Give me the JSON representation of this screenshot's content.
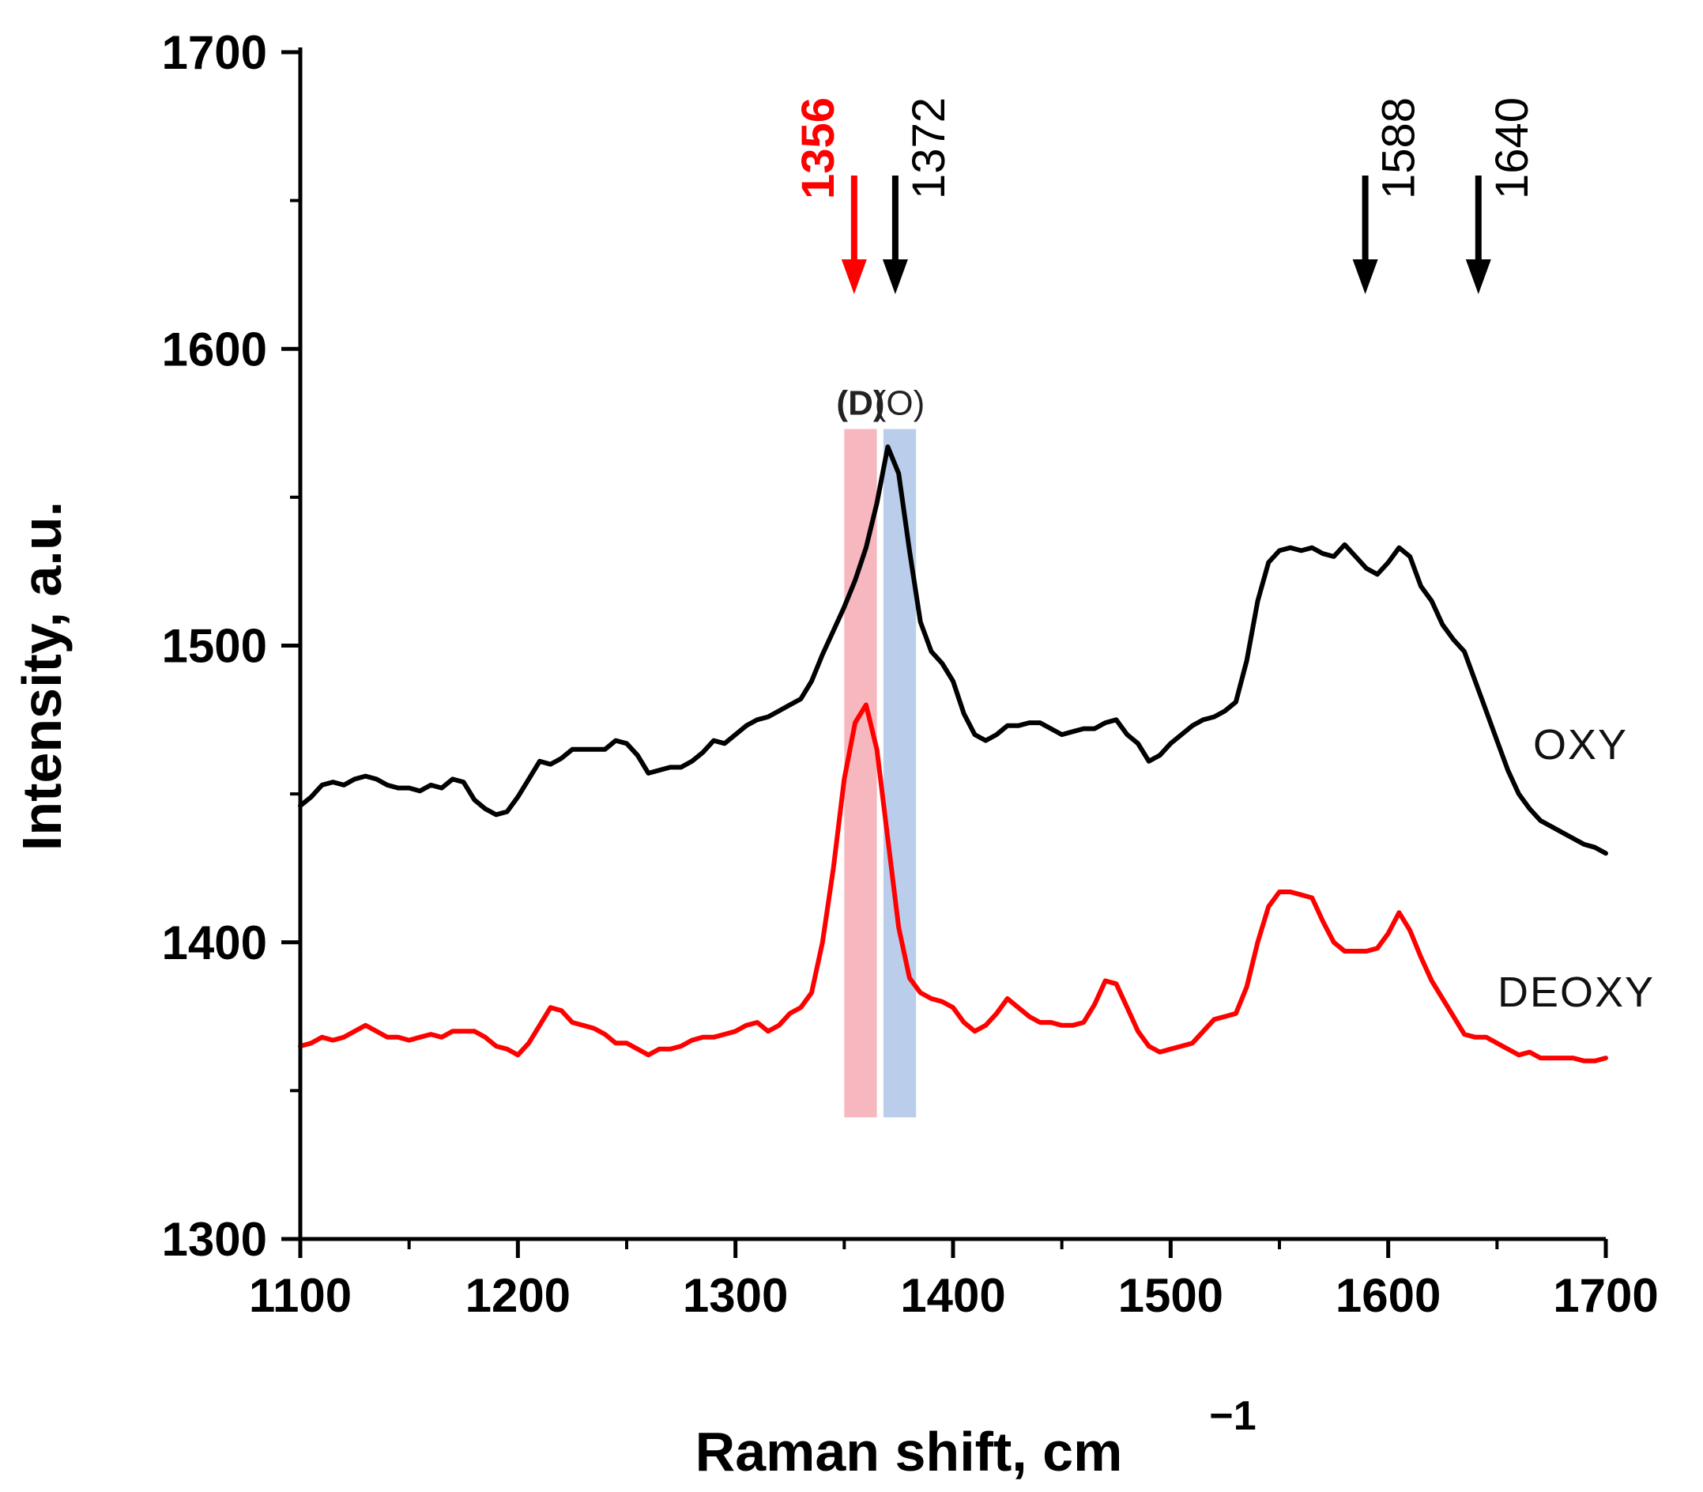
{
  "chart_data": {
    "type": "line",
    "title": "",
    "xlabel": "Raman shift, cm",
    "xlabel_superscript": "−1",
    "ylabel": "Intensity, a.u.",
    "xlim": [
      1100,
      1700
    ],
    "ylim": [
      1300,
      1700
    ],
    "x_ticks": [
      1100,
      1200,
      1300,
      1400,
      1500,
      1600,
      1700
    ],
    "x_tick_labels": [
      "1100",
      "1200",
      "1300",
      "1400",
      "1500",
      "1600",
      "1700"
    ],
    "y_ticks": [
      1300,
      1400,
      1500,
      1600,
      1700
    ],
    "y_tick_labels": [
      "1300",
      "1400",
      "1500",
      "1600",
      "1700"
    ],
    "grid": false,
    "series": [
      {
        "name": "OXY",
        "color": "#000000",
        "x": [
          1100,
          1105,
          1110,
          1115,
          1120,
          1125,
          1130,
          1135,
          1140,
          1145,
          1150,
          1155,
          1160,
          1165,
          1170,
          1175,
          1180,
          1185,
          1190,
          1195,
          1200,
          1205,
          1210,
          1215,
          1220,
          1225,
          1230,
          1235,
          1240,
          1245,
          1250,
          1255,
          1260,
          1265,
          1270,
          1275,
          1280,
          1285,
          1290,
          1295,
          1300,
          1305,
          1310,
          1315,
          1320,
          1325,
          1330,
          1335,
          1340,
          1345,
          1350,
          1355,
          1360,
          1365,
          1370,
          1375,
          1380,
          1385,
          1390,
          1395,
          1400,
          1405,
          1410,
          1415,
          1420,
          1425,
          1430,
          1435,
          1440,
          1445,
          1450,
          1455,
          1460,
          1465,
          1470,
          1475,
          1480,
          1485,
          1490,
          1495,
          1500,
          1505,
          1510,
          1515,
          1520,
          1525,
          1530,
          1535,
          1540,
          1545,
          1550,
          1555,
          1560,
          1565,
          1570,
          1575,
          1580,
          1585,
          1590,
          1595,
          1600,
          1605,
          1610,
          1615,
          1620,
          1625,
          1630,
          1635,
          1640,
          1645,
          1650,
          1655,
          1660,
          1665,
          1670,
          1675,
          1680,
          1685,
          1690,
          1695,
          1700
        ],
        "y": [
          1446,
          1449,
          1453,
          1454,
          1453,
          1455,
          1456,
          1455,
          1453,
          1452,
          1452,
          1451,
          1453,
          1452,
          1455,
          1454,
          1448,
          1445,
          1443,
          1444,
          1449,
          1455,
          1461,
          1460,
          1462,
          1465,
          1465,
          1465,
          1465,
          1468,
          1467,
          1463,
          1457,
          1458,
          1459,
          1459,
          1461,
          1464,
          1468,
          1467,
          1470,
          1473,
          1475,
          1476,
          1478,
          1480,
          1482,
          1488,
          1497,
          1505,
          1513,
          1522,
          1533,
          1548,
          1567,
          1558,
          1532,
          1508,
          1498,
          1494,
          1488,
          1477,
          1470,
          1468,
          1470,
          1473,
          1473,
          1474,
          1474,
          1472,
          1470,
          1471,
          1472,
          1472,
          1474,
          1475,
          1470,
          1467,
          1461,
          1463,
          1467,
          1470,
          1473,
          1475,
          1476,
          1478,
          1481,
          1495,
          1515,
          1528,
          1532,
          1533,
          1532,
          1533,
          1531,
          1530,
          1534,
          1530,
          1526,
          1524,
          1528,
          1533,
          1530,
          1520,
          1515,
          1507,
          1502,
          1498,
          1488,
          1478,
          1468,
          1458,
          1450,
          1445,
          1441,
          1439,
          1437,
          1435,
          1433,
          1432,
          1430
        ]
      },
      {
        "name": "DEOXY",
        "color": "#ff0000",
        "x": [
          1100,
          1105,
          1110,
          1115,
          1120,
          1125,
          1130,
          1135,
          1140,
          1145,
          1150,
          1155,
          1160,
          1165,
          1170,
          1175,
          1180,
          1185,
          1190,
          1195,
          1200,
          1205,
          1210,
          1215,
          1220,
          1225,
          1230,
          1235,
          1240,
          1245,
          1250,
          1255,
          1260,
          1265,
          1270,
          1275,
          1280,
          1285,
          1290,
          1295,
          1300,
          1305,
          1310,
          1315,
          1320,
          1325,
          1330,
          1335,
          1340,
          1345,
          1350,
          1355,
          1360,
          1365,
          1370,
          1375,
          1380,
          1385,
          1390,
          1395,
          1400,
          1405,
          1410,
          1415,
          1420,
          1425,
          1430,
          1435,
          1440,
          1445,
          1450,
          1455,
          1460,
          1465,
          1470,
          1475,
          1480,
          1485,
          1490,
          1495,
          1500,
          1505,
          1510,
          1515,
          1520,
          1525,
          1530,
          1535,
          1540,
          1545,
          1550,
          1555,
          1560,
          1565,
          1570,
          1575,
          1580,
          1585,
          1590,
          1595,
          1600,
          1605,
          1610,
          1615,
          1620,
          1625,
          1630,
          1635,
          1640,
          1645,
          1650,
          1655,
          1660,
          1665,
          1670,
          1675,
          1680,
          1685,
          1690,
          1695,
          1700
        ],
        "y": [
          1365,
          1366,
          1368,
          1367,
          1368,
          1370,
          1372,
          1370,
          1368,
          1368,
          1367,
          1368,
          1369,
          1368,
          1370,
          1370,
          1370,
          1368,
          1365,
          1364,
          1362,
          1366,
          1372,
          1378,
          1377,
          1373,
          1372,
          1371,
          1369,
          1366,
          1366,
          1364,
          1362,
          1364,
          1364,
          1365,
          1367,
          1368,
          1368,
          1369,
          1370,
          1372,
          1373,
          1370,
          1372,
          1376,
          1378,
          1383,
          1400,
          1425,
          1455,
          1474,
          1480,
          1465,
          1435,
          1405,
          1388,
          1383,
          1381,
          1380,
          1378,
          1373,
          1370,
          1372,
          1376,
          1381,
          1378,
          1375,
          1373,
          1373,
          1372,
          1372,
          1373,
          1379,
          1387,
          1386,
          1378,
          1370,
          1365,
          1363,
          1364,
          1365,
          1366,
          1370,
          1374,
          1375,
          1376,
          1385,
          1400,
          1412,
          1417,
          1417,
          1416,
          1415,
          1407,
          1400,
          1397,
          1397,
          1397,
          1398,
          1403,
          1410,
          1404,
          1395,
          1387,
          1381,
          1375,
          1369,
          1368,
          1368,
          1366,
          1364,
          1362,
          1363,
          1361,
          1361,
          1361,
          1361,
          1360,
          1360,
          1361
        ]
      }
    ],
    "series_labels": [
      "OXY",
      "DEOXY"
    ],
    "peak_annotations": [
      {
        "label": "1356",
        "x": 1356,
        "color": "#ff0000"
      },
      {
        "label": "1372",
        "x": 1372,
        "color": "#000000"
      },
      {
        "label": "1588",
        "x": 1588,
        "color": "#000000"
      },
      {
        "label": "1640",
        "x": 1640,
        "color": "#000000"
      }
    ],
    "bands": [
      {
        "label": "(D)",
        "x_from": 1350,
        "x_to": 1365,
        "y_from": 1341,
        "y_to": 1573,
        "color": "#f4a6ae"
      },
      {
        "label": "(O)",
        "x_from": 1368,
        "x_to": 1383,
        "y_from": 1341,
        "y_to": 1573,
        "color": "#a9c2e6"
      }
    ]
  }
}
